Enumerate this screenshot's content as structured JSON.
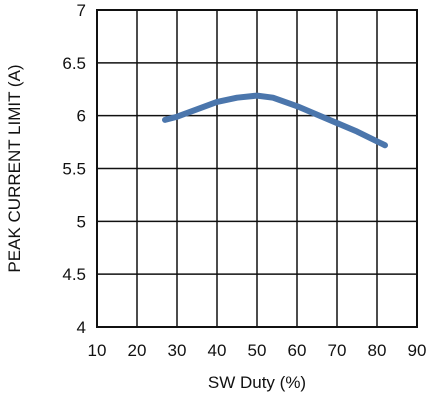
{
  "chart_data": {
    "type": "line",
    "title": "",
    "xlabel": "SW Duty (%)",
    "ylabel": "PEAK CURRENT LIMIT (A)",
    "xlim": [
      10,
      90
    ],
    "ylim": [
      4,
      7
    ],
    "xticks": [
      10,
      20,
      30,
      40,
      50,
      60,
      70,
      80,
      90
    ],
    "yticks": [
      4,
      4.5,
      5,
      5.5,
      6,
      6.5,
      7
    ],
    "xtick_labels": [
      "10",
      "20",
      "30",
      "40",
      "50",
      "60",
      "70",
      "80",
      "90"
    ],
    "ytick_labels": [
      "4",
      "4.5",
      "5",
      "5.5",
      "6",
      "6.5",
      "7"
    ],
    "grid": true,
    "series": [
      {
        "color": "#4b76ac",
        "x": [
          27,
          30,
          35,
          40,
          45,
          50,
          54,
          60,
          65,
          70,
          75,
          82
        ],
        "y": [
          5.96,
          5.99,
          6.06,
          6.13,
          6.17,
          6.19,
          6.17,
          6.09,
          6.01,
          5.93,
          5.85,
          5.72
        ]
      }
    ]
  }
}
